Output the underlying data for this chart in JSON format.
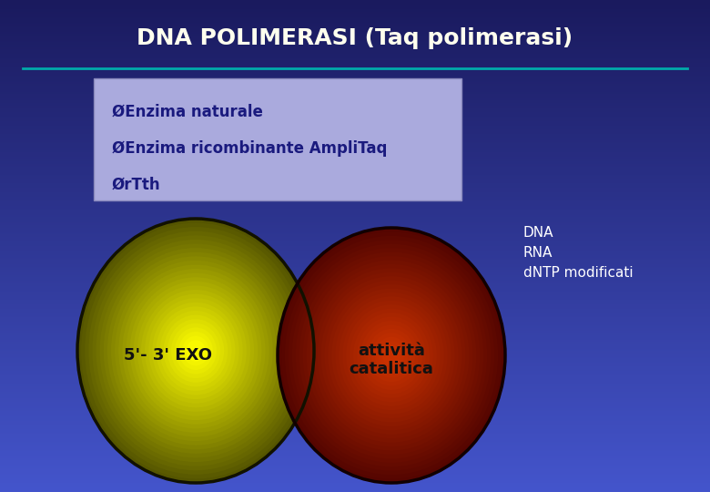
{
  "title": "DNA POLIMERASI (Taq polimerasi)",
  "title_color": "#FFFFEE",
  "title_fontsize": 18,
  "bg_top": "#1A1A5E",
  "bg_bottom": "#4444BB",
  "line_color": "#00AAAA",
  "bullet_box_bg": "#AAAADD",
  "bullet_box_edge": "#8888BB",
  "bullet_lines": [
    "ØEnzima naturale",
    "ØEnzima ricombinante AmpliTaq",
    "ØrTth"
  ],
  "bullet_text_color": "#1A1A7E",
  "bullet_fontsize": 12,
  "circle_left_label": "5'- 3' EXO",
  "circle_right_label": "attività\ncatalitica",
  "circle_label_color": "#111111",
  "circle_label_fontsize": 13,
  "side_text": [
    "DNA",
    "RNA",
    "dNTP modificati"
  ],
  "side_text_color": "#FFFFFF",
  "side_text_fontsize": 11
}
